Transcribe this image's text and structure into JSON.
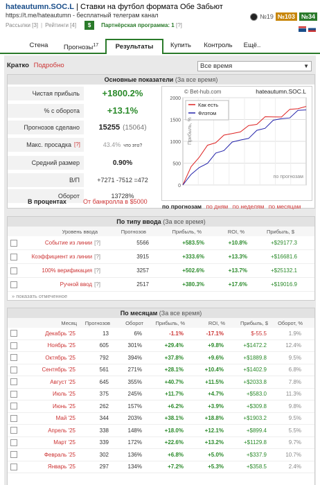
{
  "header": {
    "channel_name": "hateautumn.SOC.L",
    "separator": " | ",
    "channel_desc": "Ставки на футбол формата Обе Забьют",
    "url": "https://t.me/hateautumn - бесплатный телеграм канал",
    "links": [
      "Рассылки [3]",
      "Рейтинги [4]"
    ],
    "dollar": "$",
    "partner": "Партнёрская программа: 1",
    "partner_q": "[?]",
    "rank": "№19",
    "badge1": "№103",
    "badge2": "№34"
  },
  "tabs": [
    {
      "label": "Стена",
      "sup": ""
    },
    {
      "label": "Прогнозы",
      "sup": "17"
    },
    {
      "label": "Результаты",
      "sup": ""
    },
    {
      "label": "Купить",
      "sup": ""
    },
    {
      "label": "Контроль",
      "sup": ""
    },
    {
      "label": "Ещё..",
      "sup": ""
    }
  ],
  "period": {
    "label": "Кратко",
    "alt": "Подробно",
    "select": "Все время"
  },
  "main_stats": {
    "title": "Основные показатели",
    "subtitle": "(За все время)",
    "rows": [
      {
        "k": "Чистая прибыль",
        "v": "+1800.2%"
      },
      {
        "k": "% с оборота",
        "v": "+13.1%"
      },
      {
        "k": "Прогнозов сделано",
        "v": "15255",
        "v2": "(15064)"
      },
      {
        "k": "Макс. просадка",
        "q": "[?]",
        "v": "43.4%",
        "v2": "что это?"
      },
      {
        "k": "Средний размер",
        "v": "0.90%"
      },
      {
        "k": "В/П",
        "v": "+7271 -7512 =472"
      },
      {
        "k": "Оборот",
        "v": "13728%"
      }
    ],
    "percent_label": "В процентах",
    "bank_label": "От банкролла в $5000"
  },
  "chart": {
    "site": "© Bet-hub.com",
    "name": "hateautumn.SOC.L",
    "legend": [
      "Как есть",
      "Флэтом"
    ],
    "ylabel": "Прибыль, %",
    "xlabel": "по прогнозам",
    "yticks": [
      "2000",
      "1500",
      "1000",
      "500",
      "0"
    ],
    "nav": [
      "по прогнозам",
      "по дням",
      "по неделям",
      "по месяцам"
    ]
  },
  "chart_data": {
    "type": "line",
    "ylim": [
      0,
      2000
    ],
    "series": [
      {
        "name": "Как есть",
        "color": "#d22",
        "values": [
          0,
          420,
          700,
          880,
          1000,
          1080,
          1180,
          1280,
          1330,
          1420,
          1500,
          1560,
          1620,
          1700,
          1780,
          1800
        ]
      },
      {
        "name": "Флэтом",
        "color": "#22a",
        "values": [
          0,
          180,
          400,
          560,
          700,
          820,
          920,
          1030,
          1130,
          1220,
          1330,
          1420,
          1520,
          1600,
          1680,
          1720
        ]
      }
    ]
  },
  "by_type": {
    "title": "По типу ввода",
    "subtitle": "(За все время)",
    "headers": [
      "Уровень ввода",
      "Прогнозов",
      "Прибыль, %",
      "ROI, %",
      "Прибыль, $"
    ],
    "rows": [
      {
        "name": "Событие из линии",
        "q": "[?]",
        "n": "5566",
        "p": "+583.5%",
        "roi": "+10.8%",
        "usd": "+$29177.3"
      },
      {
        "name": "Коэффициент из линии",
        "q": "[?]",
        "n": "3915",
        "p": "+333.6%",
        "roi": "+13.3%",
        "usd": "+$16681.6"
      },
      {
        "name": "100% верификация",
        "q": "[?]",
        "n": "3257",
        "p": "+502.6%",
        "roi": "+13.7%",
        "usd": "+$25132.1"
      },
      {
        "name": "Ручной ввод",
        "q": "[?]",
        "n": "2517",
        "p": "+380.3%",
        "roi": "+17.6%",
        "usd": "+$19016.9"
      }
    ],
    "show": "» показать отмеченное"
  },
  "by_month": {
    "title": "По месяцам",
    "subtitle": "(За все время)",
    "headers": [
      "Месяц",
      "Прогнозов",
      "Оборот",
      "Прибыль, %",
      "ROI, %",
      "Прибыль, $",
      "Оборот, %"
    ],
    "rows": [
      {
        "m": "Декабрь '25",
        "n": "13",
        "o": "6%",
        "p": "-1.1%",
        "roi": "-17.1%",
        "usd": "$-55.5",
        "op": "1.9%"
      },
      {
        "m": "Ноябрь '25",
        "n": "605",
        "o": "301%",
        "p": "+29.4%",
        "roi": "+9.8%",
        "usd": "+$1472.2",
        "op": "12.4%"
      },
      {
        "m": "Октябрь '25",
        "n": "792",
        "o": "394%",
        "p": "+37.8%",
        "roi": "+9.6%",
        "usd": "+$1889.8",
        "op": "9.5%"
      },
      {
        "m": "Сентябрь '25",
        "n": "561",
        "o": "271%",
        "p": "+28.1%",
        "roi": "+10.4%",
        "usd": "+$1402.9",
        "op": "6.8%"
      },
      {
        "m": "Август '25",
        "n": "645",
        "o": "355%",
        "p": "+40.7%",
        "roi": "+11.5%",
        "usd": "+$2033.8",
        "op": "7.8%"
      },
      {
        "m": "Июль '25",
        "n": "375",
        "o": "245%",
        "p": "+11.7%",
        "roi": "+4.7%",
        "usd": "+$583.0",
        "op": "11.3%"
      },
      {
        "m": "Июнь '25",
        "n": "262",
        "o": "157%",
        "p": "+6.2%",
        "roi": "+3.9%",
        "usd": "+$309.8",
        "op": "9.8%"
      },
      {
        "m": "Май '25",
        "n": "344",
        "o": "203%",
        "p": "+38.1%",
        "roi": "+18.8%",
        "usd": "+$1903.2",
        "op": "9.5%"
      },
      {
        "m": "Апрель '25",
        "n": "338",
        "o": "148%",
        "p": "+18.0%",
        "roi": "+12.1%",
        "usd": "+$899.4",
        "op": "5.5%"
      },
      {
        "m": "Март '25",
        "n": "339",
        "o": "172%",
        "p": "+22.6%",
        "roi": "+13.2%",
        "usd": "+$1129.8",
        "op": "9.7%"
      },
      {
        "m": "Февраль '25",
        "n": "302",
        "o": "136%",
        "p": "+6.8%",
        "roi": "+5.0%",
        "usd": "+$337.9",
        "op": "10.7%"
      },
      {
        "m": "Январь '25",
        "n": "297",
        "o": "134%",
        "p": "+7.2%",
        "roi": "+5.3%",
        "usd": "+$358.5",
        "op": "2.4%"
      }
    ]
  }
}
